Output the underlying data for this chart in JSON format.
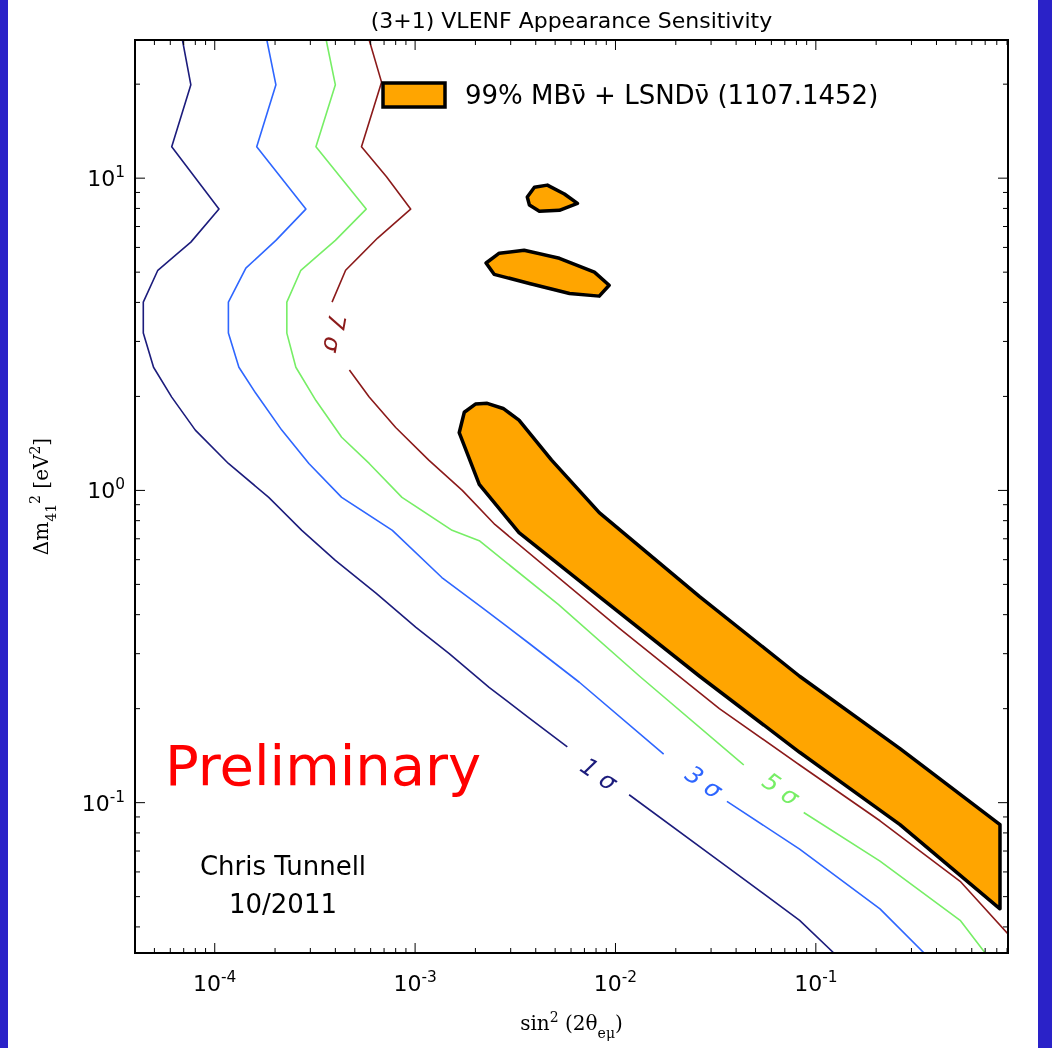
{
  "chart_data": {
    "type": "line",
    "title": "(3+1) VLENF Appearance Sensitivity",
    "xlabel": "sin$^{2}$ (2θ$_{eμ}$)",
    "ylabel": "Δm$_{41}$$^{2}$ [eV$^{2}$]",
    "log": "xy",
    "grid": false,
    "legend": "top right",
    "xlim": [
      4e-05,
      0.91
    ],
    "ylim": [
      0.033,
      27.7
    ],
    "xticks": [
      {
        "value": 4e-05,
        "label": null
      },
      {
        "value": 5e-05,
        "label": null
      },
      {
        "value": 6e-05,
        "label": null
      },
      {
        "value": 7e-05,
        "label": null
      },
      {
        "value": 8e-05,
        "label": null
      },
      {
        "value": 9e-05,
        "label": null
      },
      {
        "value": 0.0001,
        "label": "10$^{-4}$"
      },
      {
        "value": 0.0002,
        "label": null
      },
      {
        "value": 0.0003,
        "label": null
      },
      {
        "value": 0.0004,
        "label": null
      },
      {
        "value": 0.0005,
        "label": null
      },
      {
        "value": 0.0006,
        "label": null
      },
      {
        "value": 0.0007,
        "label": null
      },
      {
        "value": 0.0008,
        "label": null
      },
      {
        "value": 0.0009,
        "label": null
      },
      {
        "value": 0.001,
        "label": "10$^{-3}$"
      },
      {
        "value": 0.002,
        "label": null
      },
      {
        "value": 0.003,
        "label": null
      },
      {
        "value": 0.004,
        "label": null
      },
      {
        "value": 0.005,
        "label": null
      },
      {
        "value": 0.006,
        "label": null
      },
      {
        "value": 0.007,
        "label": null
      },
      {
        "value": 0.008,
        "label": null
      },
      {
        "value": 0.009,
        "label": null
      },
      {
        "value": 0.01,
        "label": "10$^{-2}$"
      },
      {
        "value": 0.02,
        "label": null
      },
      {
        "value": 0.03,
        "label": null
      },
      {
        "value": 0.04,
        "label": null
      },
      {
        "value": 0.05,
        "label": null
      },
      {
        "value": 0.06,
        "label": null
      },
      {
        "value": 0.07,
        "label": null
      },
      {
        "value": 0.08,
        "label": null
      },
      {
        "value": 0.09,
        "label": null
      },
      {
        "value": 0.1,
        "label": "10$^{-1}$"
      },
      {
        "value": 0.2,
        "label": null
      },
      {
        "value": 0.3,
        "label": null
      },
      {
        "value": 0.4,
        "label": null
      },
      {
        "value": 0.5,
        "label": null
      },
      {
        "value": 0.6,
        "label": null
      },
      {
        "value": 0.7,
        "label": null
      },
      {
        "value": 0.8,
        "label": null
      },
      {
        "value": 0.9,
        "label": null
      }
    ],
    "yticks": [
      {
        "value": 0.04,
        "label": null
      },
      {
        "value": 0.05,
        "label": null
      },
      {
        "value": 0.06,
        "label": null
      },
      {
        "value": 0.07,
        "label": null
      },
      {
        "value": 0.08,
        "label": null
      },
      {
        "value": 0.09,
        "label": null
      },
      {
        "value": 0.1,
        "label": "10$^{-1}$"
      },
      {
        "value": 0.2,
        "label": null
      },
      {
        "value": 0.3,
        "label": null
      },
      {
        "value": 0.4,
        "label": null
      },
      {
        "value": 0.5,
        "label": null
      },
      {
        "value": 0.6,
        "label": null
      },
      {
        "value": 0.7,
        "label": null
      },
      {
        "value": 0.8,
        "label": null
      },
      {
        "value": 0.9,
        "label": null
      },
      {
        "value": 1,
        "label": "10$^{0}$"
      },
      {
        "value": 2,
        "label": null
      },
      {
        "value": 3,
        "label": null
      },
      {
        "value": 4,
        "label": null
      },
      {
        "value": 5,
        "label": null
      },
      {
        "value": 6,
        "label": null
      },
      {
        "value": 7,
        "label": null
      },
      {
        "value": 8,
        "label": null
      },
      {
        "value": 9,
        "label": null
      },
      {
        "value": 10,
        "label": "10$^{1}$"
      },
      {
        "value": 20,
        "label": null
      }
    ],
    "series": [
      {
        "type": "area",
        "name": "99% MBν̄ + LSNDν̄ (1107.1452)",
        "color": "#ffa500",
        "x": [
          0.00229,
          0.00275,
          0.0033,
          0.0048,
          0.0083,
          0.0263,
          0.083,
          0.263,
          0.83,
          0.83,
          0.263,
          0.083,
          0.0263,
          0.0083,
          0.0033,
          0.00209,
          0.00166,
          0.00176,
          0.002,
          null,
          0.00363,
          0.00394,
          0.00457,
          0.00556,
          0.00646,
          0.00525,
          0.00417,
          0.00372,
          null,
          0.00226,
          0.00263,
          0.0035,
          0.00525,
          0.00785,
          0.0093,
          0.0083,
          0.0059,
          0.00372,
          0.00248
        ],
        "values": [
          1.9,
          1.83,
          1.68,
          1.25,
          0.849,
          0.457,
          0.254,
          0.149,
          0.085,
          0.0457,
          0.085,
          0.145,
          0.254,
          0.457,
          0.733,
          1.045,
          1.53,
          1.78,
          1.89,
          null,
          8.7,
          9.35,
          9.5,
          8.9,
          8.3,
          7.89,
          7.83,
          8.2,
          null,
          5.35,
          5.75,
          5.88,
          5.54,
          5.0,
          4.54,
          4.19,
          4.27,
          4.6,
          4.92
        ]
      },
      {
        "color": "#1c1c7c",
        "x": [
          6.9e-05,
          7.6e-05,
          6.1e-05,
          0.000105,
          7.6e-05,
          5.2e-05,
          4.4e-05,
          4.4e-05,
          4.95e-05,
          6.1e-05,
          8e-05,
          0.000117,
          0.000186,
          0.000272,
          0.0004,
          0.00064,
          0.00101,
          0.00148,
          0.00234,
          0.0037,
          0.00575,
          null,
          0.0117,
          0.033,
          0.083,
          0.123
        ],
        "values": [
          27.7,
          19.9,
          12.6,
          7.96,
          6.24,
          5.07,
          4.01,
          3.19,
          2.48,
          1.99,
          1.56,
          1.22,
          0.95,
          0.745,
          0.597,
          0.468,
          0.364,
          0.3,
          0.234,
          0.187,
          0.151,
          null,
          0.106,
          0.065,
          0.042,
          0.033
        ]
      },
      {
        "color": "#2e66ff",
        "x": [
          0.000182,
          0.000202,
          0.000162,
          0.000285,
          0.000202,
          0.000143,
          0.000117,
          0.000117,
          0.000132,
          0.00016,
          0.000216,
          0.000295,
          0.00043,
          0.00077,
          0.00136,
          0.00216,
          0.0037,
          0.0066,
          0.0174,
          null,
          0.036,
          0.083,
          0.209,
          0.347
        ],
        "values": [
          27.7,
          19.9,
          12.6,
          7.96,
          6.32,
          5.15,
          4.01,
          3.19,
          2.48,
          2.05,
          1.56,
          1.22,
          0.95,
          0.745,
          0.526,
          0.421,
          0.324,
          0.243,
          0.143,
          null,
          0.101,
          0.071,
          0.0457,
          0.033
        ]
      },
      {
        "color": "#77ee66",
        "x": [
          0.00036,
          0.0004,
          0.00032,
          0.00057,
          0.0004,
          0.000269,
          0.000229,
          0.000229,
          0.000254,
          0.00032,
          0.00043,
          0.00059,
          0.00086,
          0.00153,
          0.00209,
          0.0052,
          0.0132,
          0.0437,
          null,
          0.087,
          0.209,
          0.525,
          0.7
        ],
        "values": [
          27.7,
          19.9,
          12.6,
          7.96,
          6.32,
          5.07,
          4.01,
          3.19,
          2.48,
          1.94,
          1.48,
          1.22,
          0.95,
          0.745,
          0.69,
          0.431,
          0.254,
          0.132,
          null,
          0.093,
          0.065,
          0.042,
          0.033
        ]
      },
      {
        "color": "#8b1a1a",
        "x": [
          0.00059,
          0.00068,
          0.00054,
          0.00072,
          0.00095,
          0.00065,
          0.00045,
          0.000385,
          null,
          0.00047,
          0.00059,
          0.0008,
          0.00117,
          0.00172,
          0.0025,
          0.0105,
          0.033,
          0.083,
          0.209,
          0.525,
          0.91
        ],
        "values": [
          27.7,
          20.3,
          12.6,
          10.1,
          7.96,
          6.43,
          5.07,
          4.01,
          null,
          2.43,
          1.99,
          1.59,
          1.25,
          1.0,
          0.778,
          0.361,
          0.2,
          0.132,
          0.0875,
          0.056,
          0.038
        ]
      }
    ],
    "annotations": [
      "Preliminary",
      "Chris Tunnell",
      "10/2011",
      "1 σ",
      "3 σ",
      "5 σ",
      "7 σ"
    ]
  }
}
